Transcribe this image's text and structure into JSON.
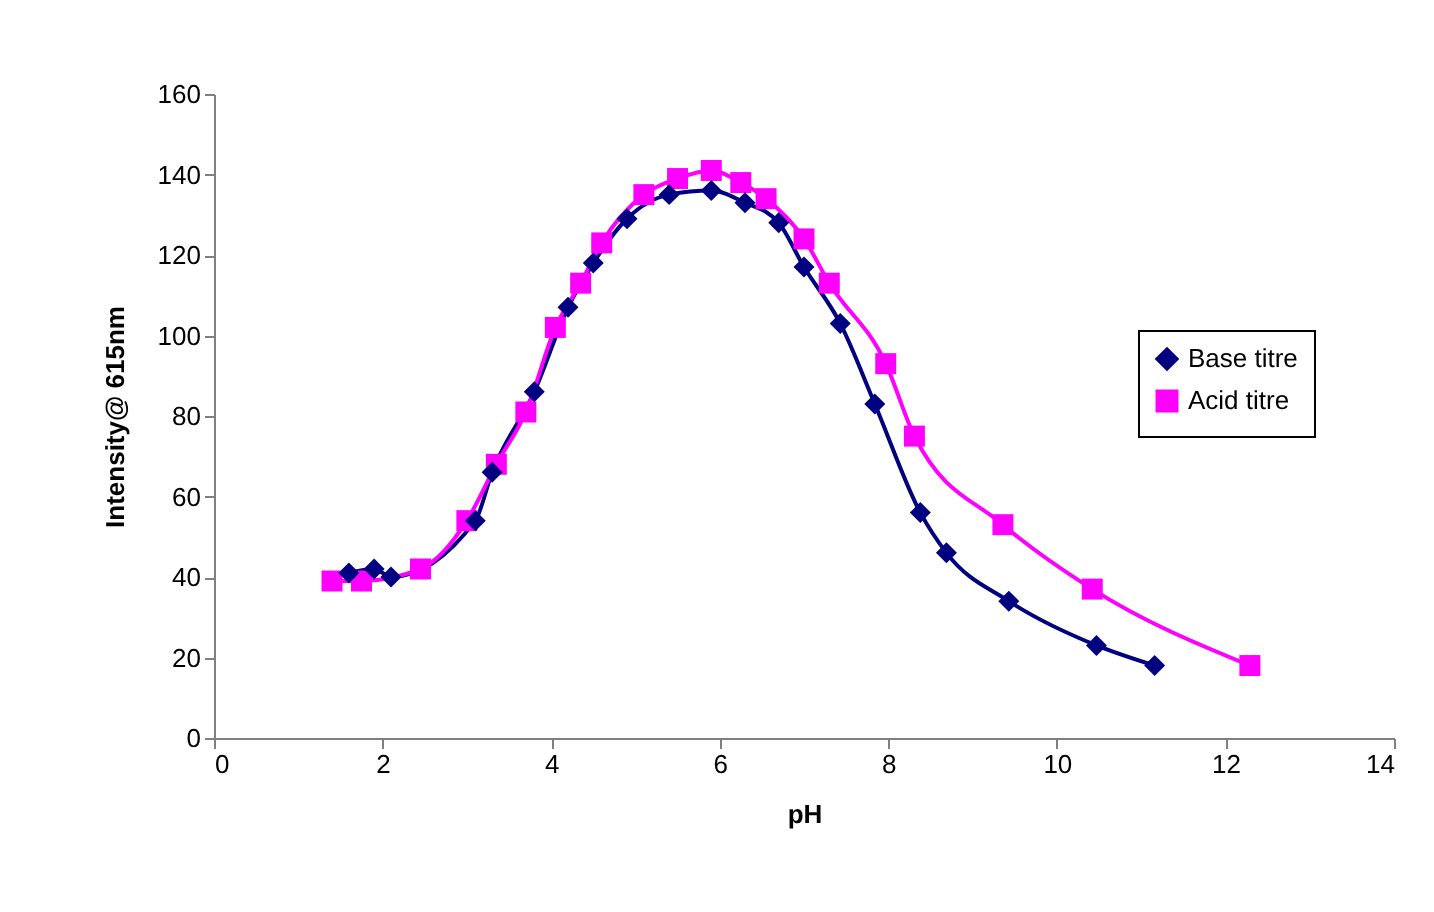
{
  "chart_data": {
    "type": "line",
    "xlabel": "pH",
    "ylabel": "Intensity@ 615nm",
    "xlim": [
      0,
      14
    ],
    "xticks": [
      0,
      2,
      4,
      6,
      8,
      10,
      12,
      14
    ],
    "ylim": [
      0,
      160
    ],
    "yticks": [
      0,
      20,
      40,
      60,
      80,
      100,
      120,
      140,
      160
    ],
    "grid": false,
    "legend": "right",
    "line_style": "solid",
    "series": [
      {
        "name": "Base titre",
        "color": "#000080",
        "marker": "diamond",
        "x": [
          1.6,
          1.9,
          2.1,
          3.1,
          3.3,
          3.8,
          4.2,
          4.5,
          4.9,
          5.4,
          5.9,
          6.3,
          6.7,
          7.0,
          7.43,
          7.84,
          8.38,
          8.69,
          9.43,
          10.47,
          11.16
        ],
        "values": [
          41,
          42,
          40,
          54,
          66,
          86,
          107,
          118,
          129,
          135,
          136,
          133,
          128,
          117,
          103,
          83,
          56,
          46,
          34,
          23,
          18
        ]
      },
      {
        "name": "Acid titre",
        "color": "#ff00ff",
        "marker": "square",
        "x": [
          1.4,
          1.75,
          2.45,
          3.0,
          3.35,
          3.7,
          4.05,
          4.35,
          4.6,
          5.1,
          5.5,
          5.9,
          6.25,
          6.55,
          7.0,
          7.3,
          7.97,
          8.31,
          9.36,
          10.42,
          12.29
        ],
        "values": [
          39,
          39,
          42,
          54,
          68,
          81,
          102,
          113,
          123,
          135,
          139,
          141,
          138,
          134,
          124,
          113,
          93,
          75,
          53,
          37,
          18
        ]
      }
    ]
  }
}
